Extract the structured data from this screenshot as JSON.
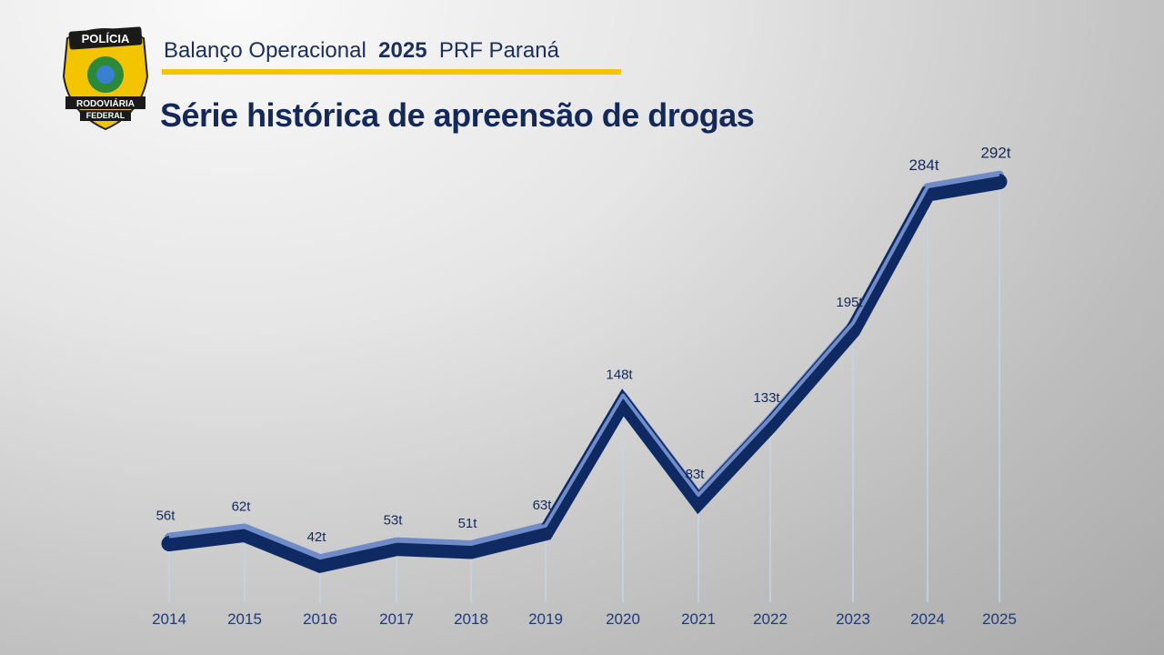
{
  "header": {
    "subtitle_prefix": "Balanço Operacional",
    "subtitle_year": "2025",
    "subtitle_suffix": "PRF Paraná",
    "logo_text_top": "POLÍCIA",
    "logo_text_bottom1": "RODOVIÁRIA",
    "logo_text_bottom2": "FEDERAL"
  },
  "colors": {
    "line": "#0f2a63",
    "highlight": "#6f8cc9",
    "accent": "#f2c500",
    "text": "#14295a"
  },
  "chart_data": {
    "type": "line",
    "title": "Série histórica de apreensão de drogas",
    "categories": [
      "2014",
      "2015",
      "2016",
      "2017",
      "2018",
      "2019",
      "2020",
      "2021",
      "2022",
      "2023",
      "2024",
      "2025"
    ],
    "values": [
      56,
      62,
      42,
      53,
      51,
      63,
      148,
      83,
      133,
      195,
      284,
      292
    ],
    "data_labels": [
      "56t",
      "62t",
      "42t",
      "53t",
      "51t",
      "63t",
      "148t",
      "83t",
      "133t",
      "195t",
      "284t",
      "292t"
    ],
    "unit": "t",
    "grid": false,
    "legend": "none"
  }
}
